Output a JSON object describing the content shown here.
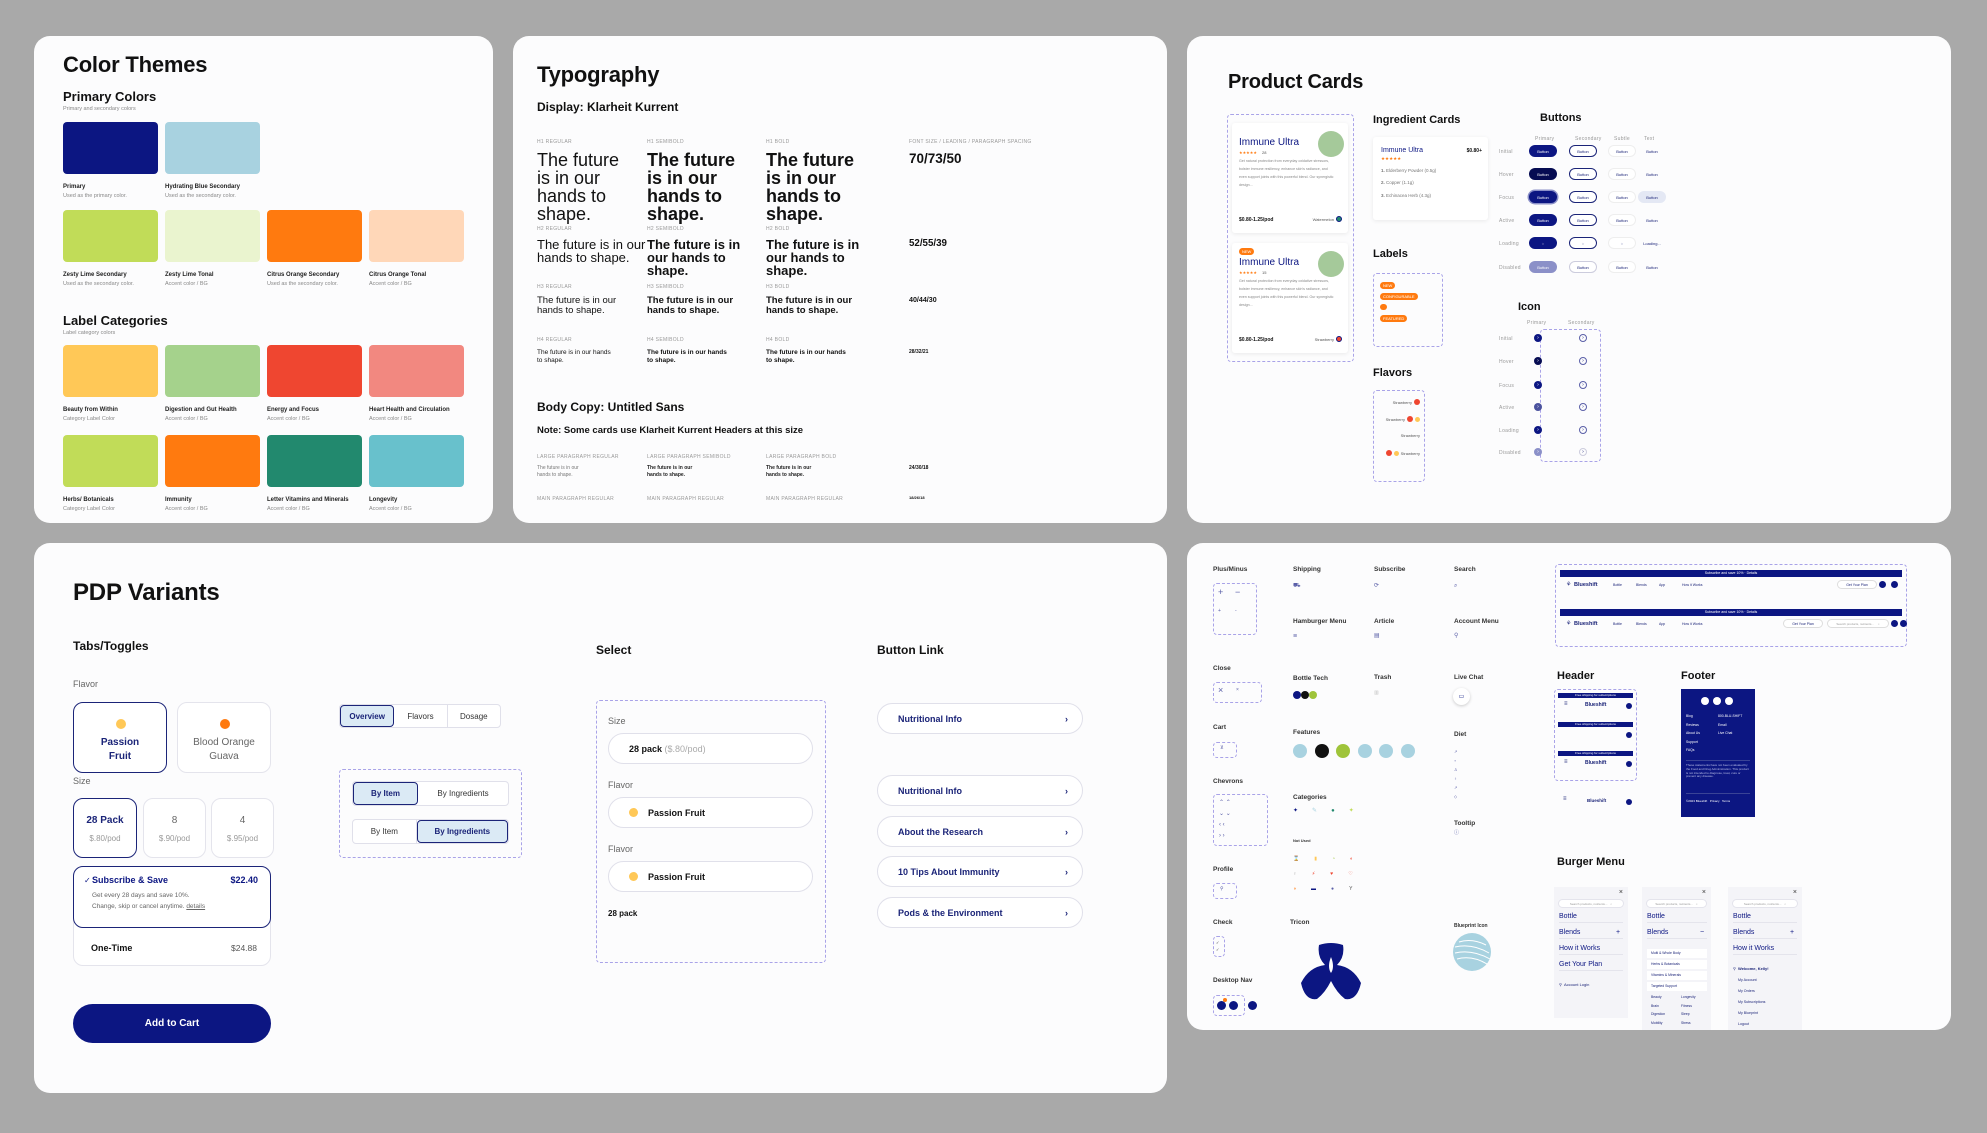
{
  "color_themes": {
    "title": "Color Themes",
    "primary_heading": "Primary Colors",
    "primary_sub": "Primary and secondary colors",
    "primary": [
      {
        "name": "Primary",
        "desc": "Used as the primary color.",
        "color": "#0c1682"
      },
      {
        "name": "Hydrating Blue Secondary",
        "desc": "Used as the secondary color.",
        "color": "#a8d2e0"
      }
    ],
    "secondary": [
      {
        "name": "Zesty Lime Secondary",
        "desc": "Used as the secondary color.",
        "color": "#c1dc58"
      },
      {
        "name": "Zesty Lime Tonal",
        "desc": "Accent color / BG",
        "color": "#eaf4cf"
      },
      {
        "name": "Citrus Orange Secondary",
        "desc": "Used as the secondary color.",
        "color": "#ff7a0f"
      },
      {
        "name": "Citrus Orange Tonal",
        "desc": "Accent color / BG",
        "color": "#ffd7b8"
      }
    ],
    "label_heading": "Label Categories",
    "label_sub": "Label category colors",
    "labels_row1": [
      {
        "name": "Beauty from Within",
        "desc": "Category Label Color",
        "color": "#ffc857"
      },
      {
        "name": "Digestion and Gut Health",
        "desc": "Accent color / BG",
        "color": "#a5d28c"
      },
      {
        "name": "Energy and Focus",
        "desc": "Accent color / BG",
        "color": "#ef4630"
      },
      {
        "name": "Heart Health and Circulation",
        "desc": "Accent color / BG",
        "color": "#f28880"
      }
    ],
    "labels_row2": [
      {
        "name": "Herbs/ Botanicals",
        "desc": "Category Label Color",
        "color": "#c1dc58"
      },
      {
        "name": "Immunity",
        "desc": "Accent color / BG",
        "color": "#ff7a0f"
      },
      {
        "name": "Letter Vitamins and Minerals",
        "desc": "Accent color / BG",
        "color": "#22896e"
      },
      {
        "name": "Longevity",
        "desc": "Accent color / BG",
        "color": "#68c1cc"
      }
    ]
  },
  "typography": {
    "title": "Typography",
    "display_heading": "Display: Klarheit Kurrent",
    "spec_header": "Font size / Leading / Paragraph spacing",
    "sample": "The future is in our hands to shape.",
    "rows": [
      {
        "labels": [
          "H1 Regular",
          "H1 Semibold",
          "H1 Bold"
        ],
        "spec": "70/73/50"
      },
      {
        "labels": [
          "H2 Regular",
          "H2 Semibold",
          "H2 Bold"
        ],
        "spec": "52/55/39"
      },
      {
        "labels": [
          "H3 Regular",
          "H3 Semibold",
          "H3 Bold"
        ],
        "spec": "40/44/30"
      },
      {
        "labels": [
          "H4 Regular",
          "H4 Semibold",
          "H4 Bold"
        ],
        "spec": "28/32/21"
      }
    ],
    "body_heading": "Body Copy: Untitled Sans",
    "body_note": "Note: Some cards use Klarheit Kurrent Headers at this size",
    "body_labels": [
      "Large paragraph regular",
      "Large paragraph semibold",
      "Large paragraph bold"
    ],
    "body_spec": "24/30/18",
    "main_labels": [
      "Main paragraph regular",
      "Main paragraph regular",
      "Main paragraph regular"
    ],
    "main_spec": "18/26/18"
  },
  "product_cards": {
    "title": "Product Cards",
    "cards": [
      {
        "badge": "",
        "name": "Immune Ultra",
        "reviews": "28",
        "desc": "Get natural protection from everyday oxidative stressors, bolster immune resiliency, enhance skin's radiance, and even support joints with this powerful blend. Our synergistic design...",
        "price": "$0.80-1.25/pod",
        "flavor": "Watermelon"
      },
      {
        "badge": "NEW",
        "name": "Immune Ultra",
        "reviews": "15",
        "desc": "Get natural protection from everyday oxidative stressors, bolster immune resiliency, enhance skin's radiance, and even support joints with this powerful blend. Our synergistic design...",
        "price": "$0.80-1.25/pod",
        "flavor": "Strawberry"
      }
    ],
    "ingredient_heading": "Ingredient Cards",
    "ingredient_card": {
      "name": "Immune Ultra",
      "reviews": "15",
      "price": "$0.80+",
      "items": [
        "Elderberry Powder (0.5g)",
        "Copper (1.1g)",
        "Echinacea Herb (4.3g)"
      ]
    },
    "labels_heading": "Labels",
    "labels": [
      "NEW",
      "CONFIGURABLE",
      "",
      "FEATURED"
    ],
    "flavors_heading": "Flavors",
    "flavors": [
      "Strawberry",
      "Strawberry",
      "Strawberry",
      "Strawberry"
    ],
    "buttons_heading": "Buttons",
    "button_cols": [
      "Primary",
      "Secondary",
      "Subtle",
      "Text"
    ],
    "button_rows": [
      "Initial",
      "Hover",
      "Focus",
      "Active",
      "Loading",
      "Disabled"
    ],
    "button_label": "Button",
    "loading_label": "Loading...",
    "icon_heading": "Icon",
    "icon_cols": [
      "Primary",
      "Secondary"
    ],
    "stars": "★★★★★"
  },
  "pdp": {
    "title": "PDP Variants",
    "tabs_heading": "Tabs/Toggles",
    "flavor_label": "Flavor",
    "flavors": [
      {
        "name": "Passion Fruit",
        "color": "#ffc857",
        "selected": true
      },
      {
        "name": "Blood Orange Guava",
        "color": "#ff7a0f",
        "selected": false
      }
    ],
    "size_label": "Size",
    "sizes": [
      {
        "name": "28 Pack",
        "price": "$.80/pod",
        "selected": true
      },
      {
        "name": "8",
        "price": "$.90/pod",
        "selected": false
      },
      {
        "name": "4",
        "price": "$.95/pod",
        "selected": false
      }
    ],
    "subscribe": {
      "check": "✓",
      "title": "Subscribe & Save",
      "price": "$22.40",
      "line1": "Get every 28 days and save 10%.",
      "line2": "Change, skip or cancel anytime.",
      "link": "details"
    },
    "one_time": {
      "title": "One-Time",
      "price": "$24.88"
    },
    "add_to_cart": "Add to Cart",
    "tabs": [
      "Overview",
      "Flavors",
      "Dosage"
    ],
    "toggle_options": [
      "By Item",
      "By Ingredients"
    ],
    "select_heading": "Select",
    "select": {
      "size_label": "Size",
      "size_value": "28 pack",
      "size_hint": "($.80/pod)",
      "flavor_label": "Flavor",
      "flavor_value": "Passion Fruit",
      "flavor_label2": "Flavor",
      "flavor_value2": "Passion Fruit",
      "plain": "28 pack"
    },
    "link_heading": "Button Link",
    "links": [
      "Nutritional Info",
      "Nutritional Info",
      "About the Research",
      "10 Tips About Immunity",
      "Pods & the Environment"
    ]
  },
  "icons": {
    "groups": {
      "plus_minus": "Plus/Minus",
      "shipping": "Shipping",
      "subscribe": "Subscribe",
      "search": "Search",
      "hamburger": "Hamburger Menu",
      "article": "Article",
      "account": "Account Menu",
      "close": "Close",
      "bottle_tech": "Bottle Tech",
      "trash": "Trash",
      "live_chat": "Live Chat",
      "cart": "Cart",
      "features": "Features",
      "diet": "Diet",
      "chevrons": "Chevrons",
      "categories": "Categories",
      "tooltip": "Tooltip",
      "not_used": "Not Used",
      "profile": "Profile",
      "check": "Check",
      "desktop_nav": "Desktop Nav",
      "tricon": "Tricon",
      "blueprint": "Blueprint Icon"
    },
    "feature_colors": [
      "#a8d2e0",
      "#111111",
      "#9fc43a",
      "#a8d2e0",
      "#a8d2e0",
      "#a8d2e0"
    ]
  },
  "site": {
    "banner": "Subscribe and save 10% · Details",
    "brand": "Blueshift",
    "nav": [
      "Bottle",
      "Blends",
      "App",
      "How it Works"
    ],
    "cta": "Get Your Plan",
    "search_placeholder": "Search products, nutrients...",
    "header_heading": "Header",
    "mobile_banner": "Free shipping for subscriptions",
    "footer_heading": "Footer",
    "footer_links": [
      "Blog",
      "Reviews",
      "About Us",
      "Support",
      "FAQs"
    ],
    "footer_contact": [
      "800-BLU-SHIFT",
      "Email",
      "Live Chat"
    ],
    "footer_disclaimer": "These statements have not been evaluated by the Food and Drug Administration. This product is not intended to diagnose, treat, cure or prevent any disease.",
    "footer_legal": "©2023 Blueshift   Privacy   Terms",
    "burger_heading": "Burger Menu",
    "burger1": [
      "Bottle",
      "Blends",
      "How it Works",
      "Get Your Plan"
    ],
    "burger1_login": "Account Login",
    "burger2": [
      "Bottle",
      "Blends"
    ],
    "burger2_sub": [
      "Multi & Whole Body",
      "Herbs & Botanicals",
      "Vitamins & Minerals",
      "Targeted Support"
    ],
    "burger2_cats": [
      "Beauty",
      "Longevity",
      "Brain",
      "Fitness",
      "Digestion",
      "Sleep",
      "Mobility",
      "Stress"
    ],
    "burger3": [
      "Bottle",
      "Blends",
      "How it Works"
    ],
    "burger3_welcome": "Welcome, Kelly!",
    "burger3_account": [
      "My Account",
      "My Orders",
      "My Subscriptions",
      "My Blueprint",
      "Logout"
    ]
  }
}
